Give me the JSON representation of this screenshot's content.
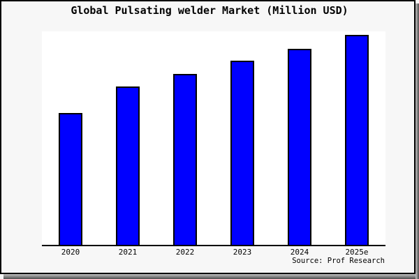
{
  "window": {
    "background_color": "#f7f7f7",
    "frame_border_color": "#000000",
    "shadow_light": "#c2c2c2",
    "shadow_dark": "#4f4f4f"
  },
  "chart_data": {
    "type": "bar",
    "title": "Global Pulsating welder Market (Million USD)",
    "categories": [
      "2020",
      "2021",
      "2022",
      "2023",
      "2024",
      "2025e"
    ],
    "values": [
      62.8,
      75.4,
      81.4,
      87.7,
      93.4,
      100
    ],
    "values_note": "y-axis is unlabeled; values are relative bar heights estimated from pixels with the 2025e bar = 100",
    "bar_color": "#0000ff",
    "bar_border_color": "#000000",
    "plot_background": "#ffffff",
    "axis_color": "#000000",
    "grid": false,
    "legend": false,
    "y_axis_labels": []
  },
  "source": {
    "text": "Source: Prof Research"
  }
}
